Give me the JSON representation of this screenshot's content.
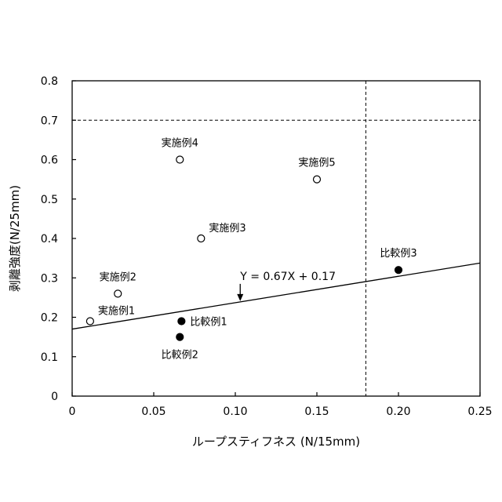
{
  "chart_data": {
    "type": "scatter",
    "xlabel": "ループスティフネス (N/15mm)",
    "ylabel": "剥離強度(N/25mm)",
    "xlim": [
      0,
      0.25
    ],
    "ylim": [
      0,
      0.8
    ],
    "x_ticks": [
      "0",
      "0.05",
      "0.10",
      "0.15",
      "0.20",
      "0.25"
    ],
    "x_tick_values": [
      0,
      0.05,
      0.1,
      0.15,
      0.2,
      0.25
    ],
    "y_ticks": [
      "0",
      "0.1",
      "0.2",
      "0.3",
      "0.4",
      "0.5",
      "0.6",
      "0.7",
      "0.8"
    ],
    "y_tick_values": [
      0,
      0.1,
      0.2,
      0.3,
      0.4,
      0.5,
      0.6,
      0.7,
      0.8
    ],
    "grid": false,
    "series": [
      {
        "marker": "open-circle",
        "points": [
          {
            "label": "実施例1",
            "x": 0.011,
            "y": 0.19,
            "label_anchor": "upper-right"
          },
          {
            "label": "実施例2",
            "x": 0.028,
            "y": 0.26,
            "label_anchor": "above"
          },
          {
            "label": "実施例3",
            "x": 0.079,
            "y": 0.4,
            "label_anchor": "upper-right"
          },
          {
            "label": "実施例4",
            "x": 0.066,
            "y": 0.6,
            "label_anchor": "above"
          },
          {
            "label": "実施例5",
            "x": 0.15,
            "y": 0.55,
            "label_anchor": "above"
          }
        ]
      },
      {
        "marker": "filled-circle",
        "points": [
          {
            "label": "比較例1",
            "x": 0.067,
            "y": 0.19,
            "label_anchor": "right"
          },
          {
            "label": "比較例2",
            "x": 0.066,
            "y": 0.15,
            "label_anchor": "below"
          },
          {
            "label": "比較例3",
            "x": 0.2,
            "y": 0.32,
            "label_anchor": "above"
          }
        ]
      }
    ],
    "trendline": {
      "slope": 0.67,
      "intercept": 0.17,
      "label": "Y = 0.67X + 0.17",
      "arrow_x": 0.103
    },
    "threshold_lines": [
      {
        "orientation": "horizontal",
        "value": 0.7,
        "style": "dashed"
      },
      {
        "orientation": "vertical",
        "value": 0.18,
        "style": "dashed"
      }
    ],
    "colors": {
      "axis": "#000000",
      "marker_fill": "#000000",
      "marker_open": "#ffffff"
    }
  }
}
